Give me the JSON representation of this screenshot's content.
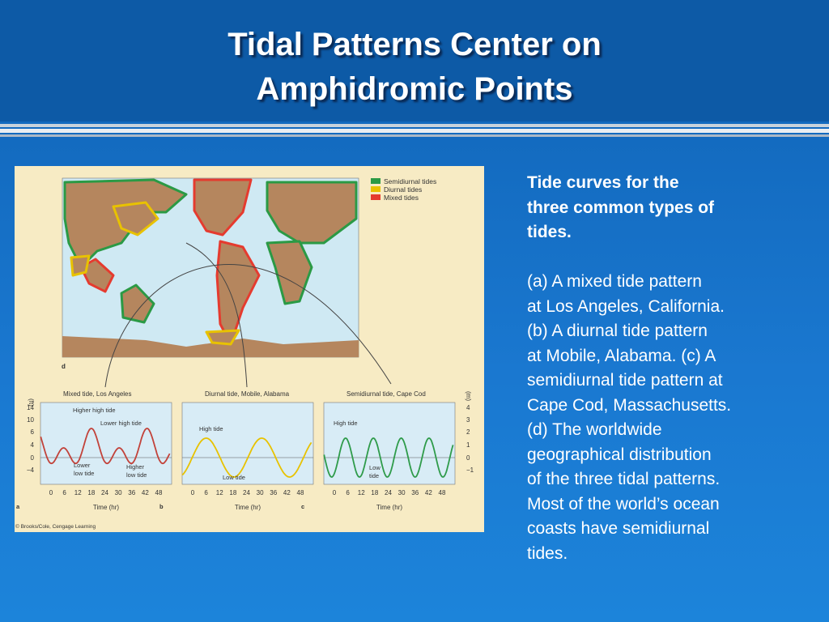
{
  "title_lines": [
    "Tidal Patterns Center on",
    "Amphidromic Points"
  ],
  "figure": {
    "legend": [
      "Semidiurnal tides",
      "Diurnal tides",
      "Mixed tides"
    ],
    "map_label": "d",
    "panels": [
      {
        "title": "Mixed tide, Los Angeles",
        "letter": "a",
        "annotations": [
          [
            "Higher high tide"
          ],
          [
            "Lower high tide"
          ],
          [
            "Lower",
            "low tide"
          ],
          [
            "Higher",
            "low tide"
          ]
        ]
      },
      {
        "title": "Diurnal tide, Mobile, Alabama",
        "letter": "b",
        "annotations": [
          [
            "High tide"
          ],
          [
            "Low tide"
          ]
        ]
      },
      {
        "title": "Semidiurnal tide, Cape Cod",
        "letter": "c",
        "annotations": [
          [
            "High tide"
          ],
          [
            "Low",
            "tide"
          ]
        ]
      }
    ],
    "x_ticks": [
      "0",
      "6",
      "12",
      "18",
      "24",
      "30",
      "36",
      "42",
      "48"
    ],
    "x_label": "Time (hr)",
    "left_unit": "(ft)",
    "left_ticks": [
      "14",
      "10",
      "6",
      "4",
      "0",
      "−4"
    ],
    "right_unit": "(m)",
    "right_ticks": [
      "4",
      "3",
      "2",
      "1",
      "0",
      "−1"
    ],
    "credit": "© Brooks/Cole, Cengage Learning"
  },
  "caption": {
    "heading_lines": [
      "Tide curves for the",
      "three common types of",
      "tides."
    ],
    "body_lines": [
      "(a) A mixed tide pattern",
      "at Los Angeles, California.",
      "(b) A diurnal tide pattern",
      "at Mobile, Alabama. (c) A",
      "semidiurnal tide pattern at",
      "Cape Cod, Massachusetts.",
      "(d) The worldwide",
      "geographical distribution",
      "of the three tidal patterns.",
      "Most of the world’s ocean",
      "coasts have semidiurnal",
      "tides."
    ]
  }
}
